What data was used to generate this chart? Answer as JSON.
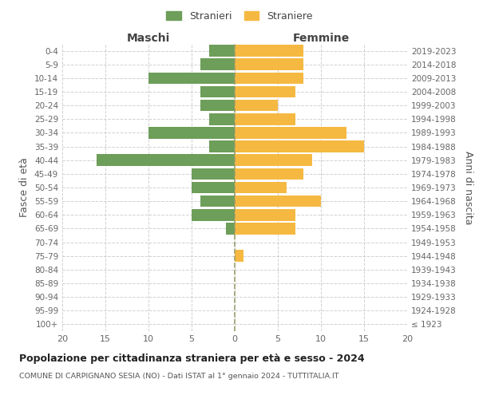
{
  "age_groups": [
    "100+",
    "95-99",
    "90-94",
    "85-89",
    "80-84",
    "75-79",
    "70-74",
    "65-69",
    "60-64",
    "55-59",
    "50-54",
    "45-49",
    "40-44",
    "35-39",
    "30-34",
    "25-29",
    "20-24",
    "15-19",
    "10-14",
    "5-9",
    "0-4"
  ],
  "birth_years": [
    "≤ 1923",
    "1924-1928",
    "1929-1933",
    "1934-1938",
    "1939-1943",
    "1944-1948",
    "1949-1953",
    "1954-1958",
    "1959-1963",
    "1964-1968",
    "1969-1973",
    "1974-1978",
    "1979-1983",
    "1984-1988",
    "1989-1993",
    "1994-1998",
    "1999-2003",
    "2004-2008",
    "2009-2013",
    "2014-2018",
    "2019-2023"
  ],
  "males": [
    0,
    0,
    0,
    0,
    0,
    0,
    0,
    1,
    5,
    4,
    5,
    5,
    16,
    3,
    10,
    3,
    4,
    4,
    10,
    4,
    3
  ],
  "females": [
    0,
    0,
    0,
    0,
    0,
    1,
    0,
    7,
    7,
    10,
    6,
    8,
    9,
    15,
    13,
    7,
    5,
    7,
    8,
    8,
    8
  ],
  "male_color": "#6d9e5a",
  "female_color": "#f5b942",
  "background_color": "#ffffff",
  "grid_color": "#cccccc",
  "title": "Popolazione per cittadinanza straniera per età e sesso - 2024",
  "subtitle": "COMUNE DI CARPIGNANO SESIA (NO) - Dati ISTAT al 1° gennaio 2024 - TUTTITALIA.IT",
  "xlabel_left": "Maschi",
  "xlabel_right": "Femmine",
  "ylabel_left": "Fasce di età",
  "ylabel_right": "Anni di nascita",
  "legend_males": "Stranieri",
  "legend_females": "Straniere",
  "xlim": 20,
  "tick_color": "#666666",
  "bar_height": 0.85
}
